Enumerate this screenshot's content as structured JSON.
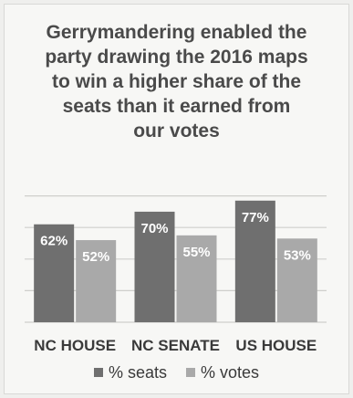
{
  "chart_data": {
    "type": "bar",
    "title_lines": [
      "Gerrymandering enabled the",
      "party drawing the 2016 maps",
      "to win a higher share of the",
      "seats than it earned from",
      "our votes"
    ],
    "categories": [
      "NC HOUSE",
      "NC SENATE",
      "US HOUSE"
    ],
    "series": [
      {
        "name": "% seats",
        "values": [
          62,
          70,
          77
        ],
        "labels": [
          "62%",
          "70%",
          "77%"
        ],
        "color": "#6f6f6f"
      },
      {
        "name": "% votes",
        "values": [
          52,
          55,
          53
        ],
        "labels": [
          "52%",
          "55%",
          "53%"
        ],
        "color": "#a9a9a9"
      }
    ],
    "ylim": [
      0,
      100
    ],
    "grid": true,
    "legend_position": "bottom",
    "grid_color": "#cfcfcc"
  }
}
